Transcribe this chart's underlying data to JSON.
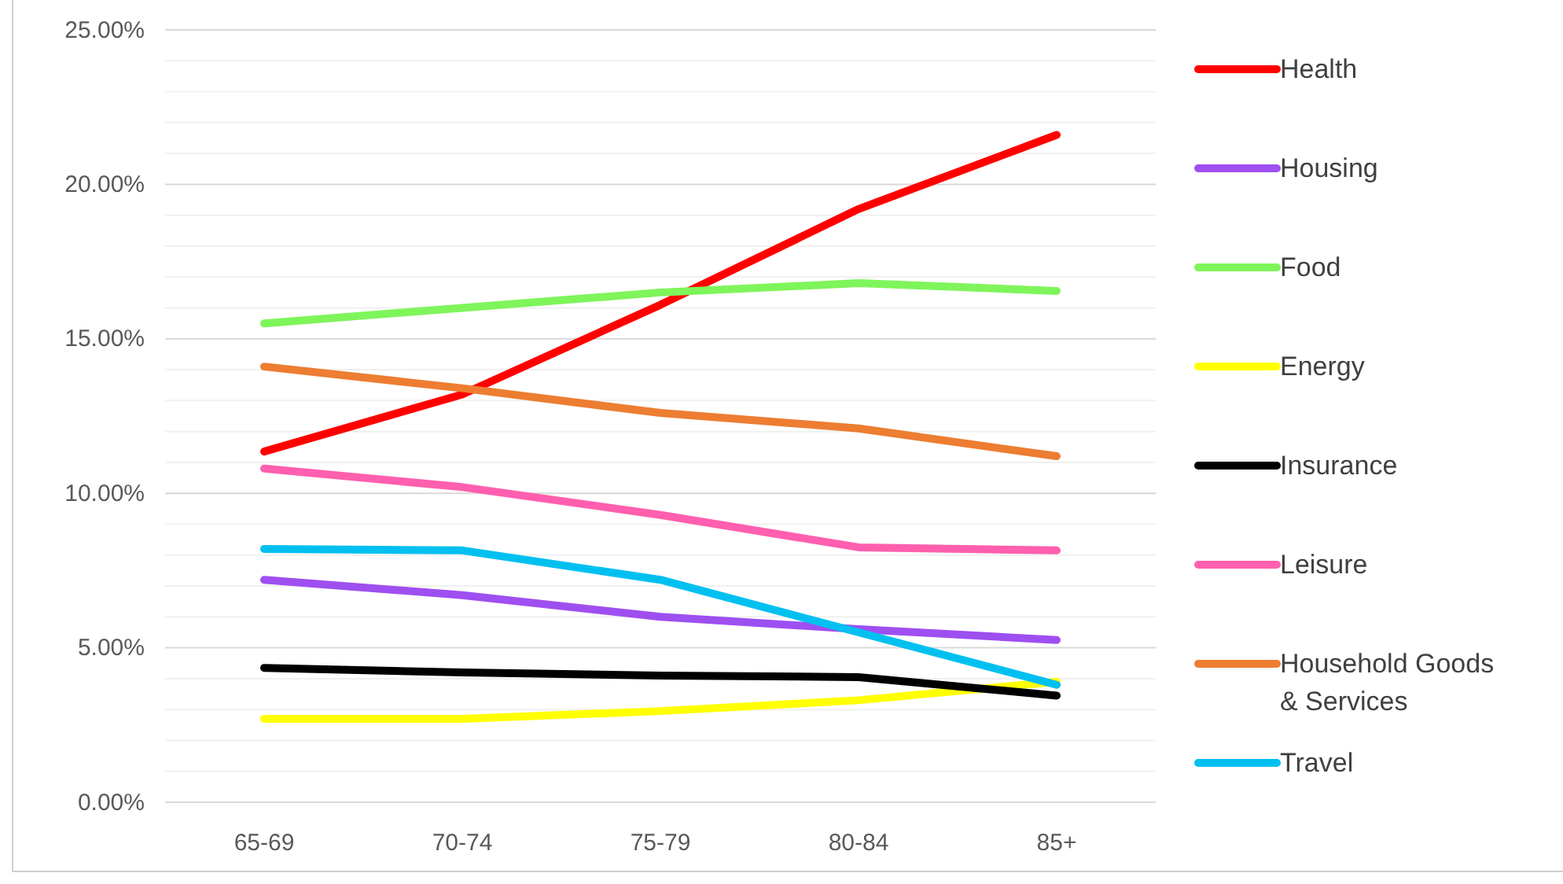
{
  "chart_data": {
    "type": "line",
    "categories": [
      "65-69",
      "70-74",
      "75-79",
      "80-84",
      "85+"
    ],
    "ylim": [
      0,
      25
    ],
    "yticks": [
      {
        "value": 0,
        "label": "0.00%"
      },
      {
        "value": 1,
        "label": null
      },
      {
        "value": 2,
        "label": null
      },
      {
        "value": 3,
        "label": null
      },
      {
        "value": 4,
        "label": null
      },
      {
        "value": 5,
        "label": "5.00%"
      },
      {
        "value": 6,
        "label": null
      },
      {
        "value": 7,
        "label": null
      },
      {
        "value": 8,
        "label": null
      },
      {
        "value": 9,
        "label": null
      },
      {
        "value": 10,
        "label": "10.00%"
      },
      {
        "value": 11,
        "label": null
      },
      {
        "value": 12,
        "label": null
      },
      {
        "value": 13,
        "label": null
      },
      {
        "value": 14,
        "label": null
      },
      {
        "value": 15,
        "label": "15.00%"
      },
      {
        "value": 16,
        "label": null
      },
      {
        "value": 17,
        "label": null
      },
      {
        "value": 18,
        "label": null
      },
      {
        "value": 19,
        "label": null
      },
      {
        "value": 20,
        "label": "20.00%"
      },
      {
        "value": 21,
        "label": null
      },
      {
        "value": 22,
        "label": null
      },
      {
        "value": 23,
        "label": null
      },
      {
        "value": 24,
        "label": null
      },
      {
        "value": 25,
        "label": "25.00%"
      }
    ],
    "grid": "y",
    "legend": "right",
    "marker": "none",
    "line_style": "solid",
    "series": [
      {
        "name": "Health",
        "color": "#ff0000",
        "values": [
          11.35,
          13.2,
          16.1,
          19.2,
          21.6
        ]
      },
      {
        "name": "Housing",
        "color": "#9e4ff0",
        "values": [
          7.2,
          6.7,
          6.0,
          5.6,
          5.25
        ]
      },
      {
        "name": "Food",
        "color": "#7ef55a",
        "values": [
          15.5,
          16.0,
          16.5,
          16.8,
          16.55
        ]
      },
      {
        "name": "Energy",
        "color": "#ffff00",
        "values": [
          2.7,
          2.7,
          2.95,
          3.3,
          3.9
        ]
      },
      {
        "name": "Insurance",
        "color": "#000000",
        "values": [
          4.35,
          4.2,
          4.1,
          4.05,
          3.45
        ]
      },
      {
        "name": "Leisure",
        "color": "#ff5fae",
        "values": [
          10.8,
          10.2,
          9.3,
          8.25,
          8.15
        ]
      },
      {
        "name": "Household Goods & Services",
        "color": "#ed7d31",
        "values": [
          14.1,
          13.4,
          12.6,
          12.1,
          11.2
        ]
      },
      {
        "name": "Travel",
        "color": "#00c0f0",
        "values": [
          8.2,
          8.15,
          7.2,
          5.5,
          3.8
        ]
      }
    ]
  }
}
